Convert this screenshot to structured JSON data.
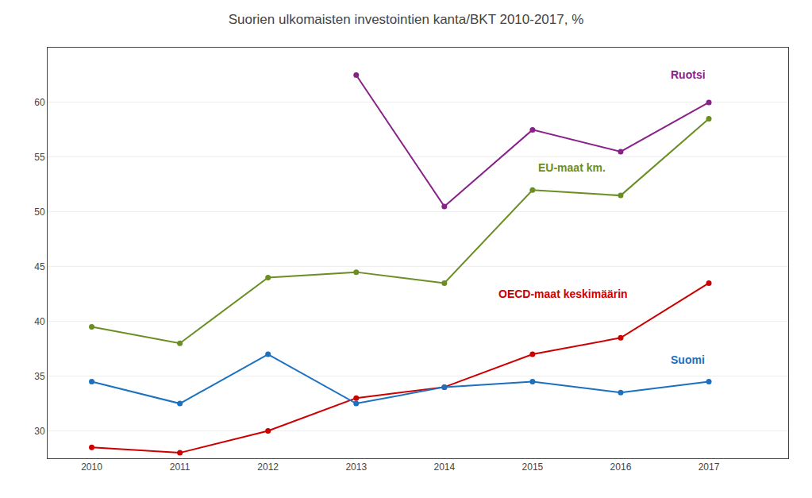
{
  "chart_data": {
    "type": "line",
    "title": "Suorien ulkomaisten investointien kanta/BKT 2010-2017, %",
    "x": [
      2010,
      2011,
      2012,
      2013,
      2014,
      2015,
      2016,
      2017
    ],
    "series": [
      {
        "name": "Ruotsi",
        "color": "#882288",
        "values": [
          null,
          null,
          null,
          62.5,
          50.5,
          57.5,
          55.5,
          60.0
        ]
      },
      {
        "name": "EU-maat km.",
        "color": "#6B8E23",
        "values": [
          39.5,
          38.0,
          44.0,
          44.5,
          43.5,
          52.0,
          51.5,
          58.5
        ]
      },
      {
        "name": "OECD-maat keskimäärin",
        "color": "#CC0000",
        "values": [
          28.5,
          28.0,
          30.0,
          33.0,
          34.0,
          37.0,
          38.5,
          43.5
        ]
      },
      {
        "name": "Suomi",
        "color": "#1B70C0",
        "values": [
          34.5,
          32.5,
          37.0,
          32.5,
          34.0,
          34.5,
          33.5,
          34.5
        ]
      }
    ],
    "annotations": [
      {
        "text": "Ruotsi",
        "x": 2016.55,
        "y": 61.8,
        "color": "#882288"
      },
      {
        "text": "EU-maat km.",
        "x": 2015.05,
        "y": 53.3,
        "color": "#6B8E23"
      },
      {
        "text": "OECD-maat keskimäärin",
        "x": 2014.6,
        "y": 41.8,
        "color": "#CC0000"
      },
      {
        "text": "Suomi",
        "x": 2016.55,
        "y": 35.8,
        "color": "#1B70C0"
      }
    ],
    "xlim": [
      2009.5,
      2017.9
    ],
    "xticks": [
      2010,
      2011,
      2012,
      2013,
      2014,
      2015,
      2016,
      2017
    ],
    "ylim": [
      27.5,
      65
    ],
    "yticks": [
      30,
      35,
      40,
      45,
      50,
      55,
      60
    ],
    "marker": "circle",
    "grid": true
  }
}
